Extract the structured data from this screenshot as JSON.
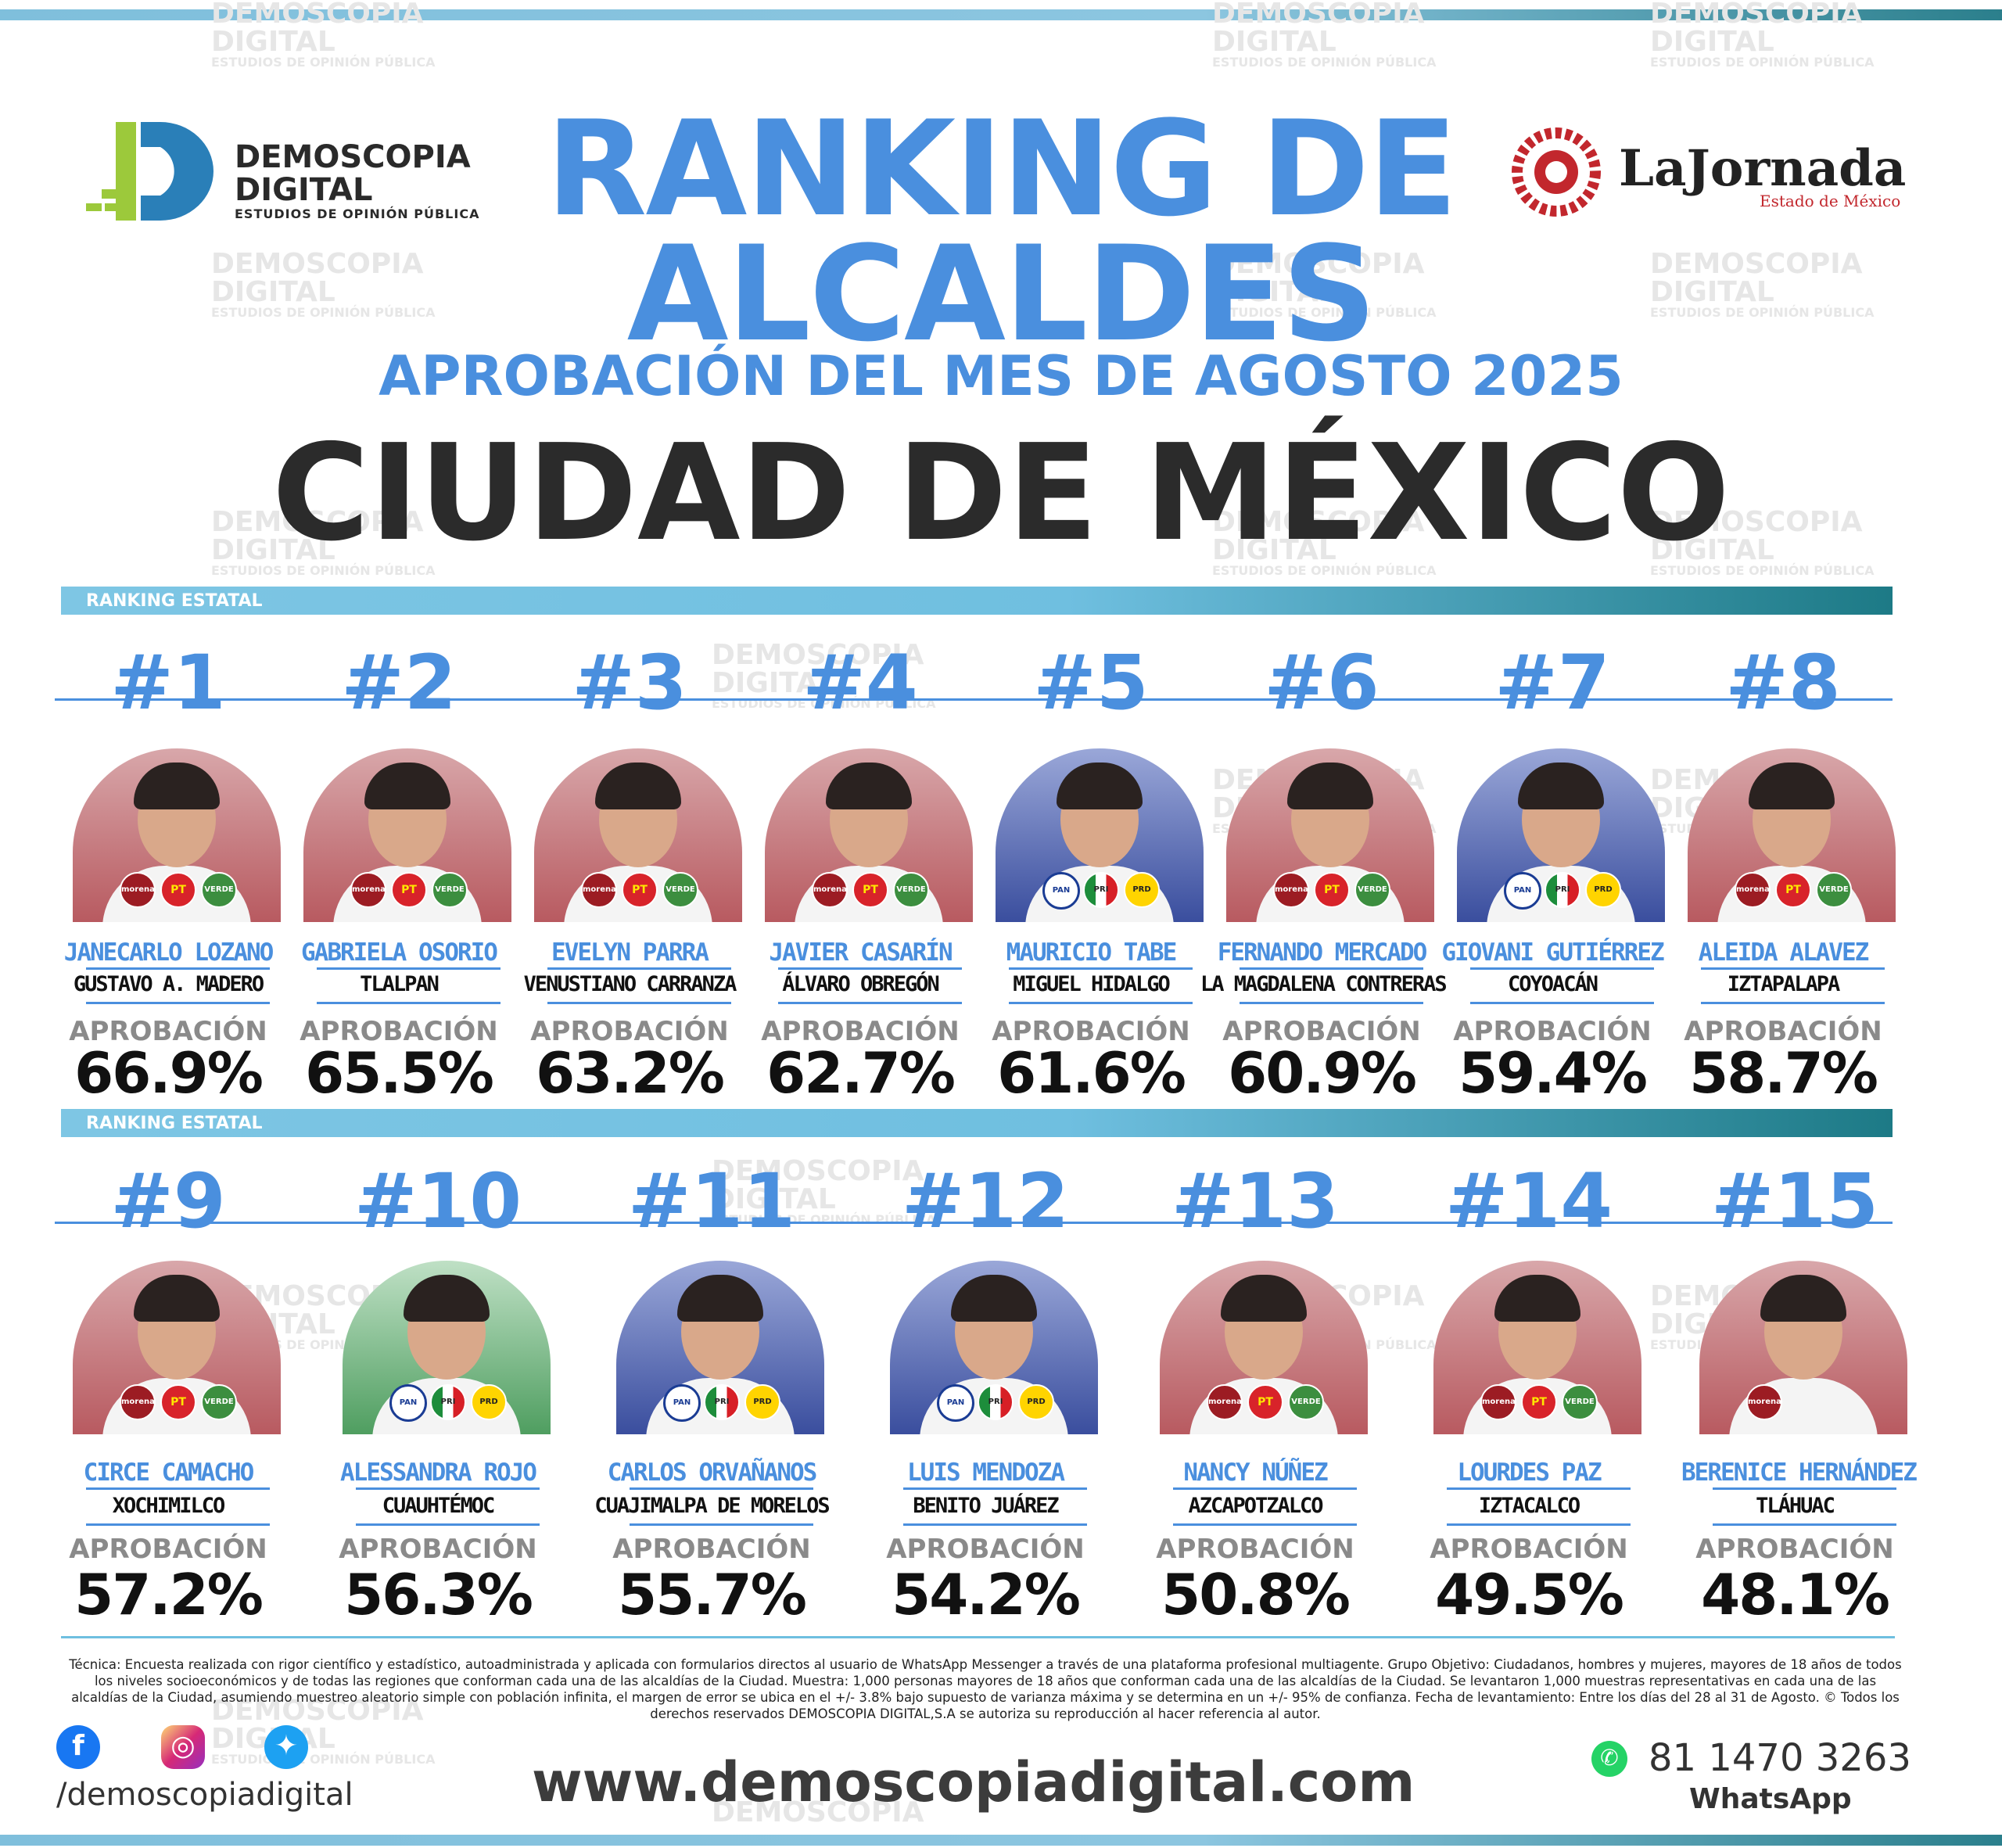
{
  "header": {
    "brand_name_line1": "DEMOSCOPIA",
    "brand_name_line2": "DIGITAL",
    "brand_tagline": "ESTUDIOS DE OPINIÓN PÚBLICA",
    "partner_name": "LaJornada",
    "partner_sub": "Estado de México",
    "title_line1": "RANKING DE",
    "title_line2": "ALCALDES",
    "subtitle": "APROBACIÓN DEL MES DE AGOSTO 2025",
    "region": "CIUDAD DE MÉXICO"
  },
  "watermark": {
    "line1": "DEMOSCOPIA",
    "line2": "DIGITAL",
    "line3": "ESTUDIOS DE OPINIÓN PÚBLICA"
  },
  "section_label": "RANKING ESTATAL",
  "approval_label": "APROBACIÓN",
  "colors": {
    "accent_blue": "#4a8fde",
    "teal": "#1d7a86",
    "text_dark": "#2b2b2b"
  },
  "candidates": [
    {
      "rank": "#1",
      "name": "JANECARLO LOZANO",
      "municipality": "GUSTAVO A. MADERO",
      "approval": "66.9%",
      "parties": [
        "morena",
        "PT",
        "VERDE"
      ]
    },
    {
      "rank": "#2",
      "name": "GABRIELA OSORIO",
      "municipality": "TLALPAN",
      "approval": "65.5%",
      "parties": [
        "morena",
        "PT",
        "VERDE"
      ]
    },
    {
      "rank": "#3",
      "name": "EVELYN PARRA",
      "municipality": "VENUSTIANO CARRANZA",
      "approval": "63.2%",
      "parties": [
        "morena",
        "PT",
        "VERDE"
      ]
    },
    {
      "rank": "#4",
      "name": "JAVIER CASARÍN",
      "municipality": "ÁLVARO OBREGÓN",
      "approval": "62.7%",
      "parties": [
        "morena",
        "PT",
        "VERDE"
      ]
    },
    {
      "rank": "#5",
      "name": "MAURICIO TABE",
      "municipality": "MIGUEL HIDALGO",
      "approval": "61.6%",
      "parties": [
        "PAN",
        "PRI",
        "PRD"
      ]
    },
    {
      "rank": "#6",
      "name": "FERNANDO MERCADO",
      "municipality": "LA MAGDALENA CONTRERAS",
      "approval": "60.9%",
      "parties": [
        "morena",
        "PT",
        "VERDE"
      ]
    },
    {
      "rank": "#7",
      "name": "GIOVANI GUTIÉRREZ",
      "municipality": "COYOACÁN",
      "approval": "59.4%",
      "parties": [
        "PAN",
        "PRI",
        "PRD"
      ]
    },
    {
      "rank": "#8",
      "name": "ALEIDA ALAVEZ",
      "municipality": "IZTAPALAPA",
      "approval": "58.7%",
      "parties": [
        "morena",
        "PT",
        "VERDE"
      ]
    },
    {
      "rank": "#9",
      "name": "CIRCE CAMACHO",
      "municipality": "XOCHIMILCO",
      "approval": "57.2%",
      "parties": [
        "morena",
        "PT",
        "VERDE"
      ]
    },
    {
      "rank": "#10",
      "name": "ALESSANDRA ROJO",
      "municipality": "CUAUHTÉMOC",
      "approval": "56.3%",
      "parties": [
        "PAN",
        "PRI",
        "PRD"
      ]
    },
    {
      "rank": "#11",
      "name": "CARLOS ORVAÑANOS",
      "municipality": "CUAJIMALPA DE MORELOS",
      "approval": "55.7%",
      "parties": [
        "PAN",
        "PRI",
        "PRD"
      ]
    },
    {
      "rank": "#12",
      "name": "LUIS MENDOZA",
      "municipality": "BENITO JUÁREZ",
      "approval": "54.2%",
      "parties": [
        "PAN",
        "PRI",
        "PRD"
      ]
    },
    {
      "rank": "#13",
      "name": "NANCY NÚÑEZ",
      "municipality": "AZCAPOTZALCO",
      "approval": "50.8%",
      "parties": [
        "morena",
        "PT",
        "VERDE"
      ]
    },
    {
      "rank": "#14",
      "name": "LOURDES PAZ",
      "municipality": "IZTACALCO",
      "approval": "49.5%",
      "parties": [
        "morena",
        "PT",
        "VERDE"
      ]
    },
    {
      "rank": "#15",
      "name": "BERENICE HERNÁNDEZ",
      "municipality": "TLÁHUAC",
      "approval": "48.1%",
      "parties": [
        "morena"
      ]
    }
  ],
  "footer": {
    "methodology": "Técnica: Encuesta realizada con rigor científico y estadístico, autoadministrada y aplicada con formularios directos al usuario de WhatsApp Messenger a través de una plataforma profesional multiagente. Grupo Objetivo: Ciudadanos, hombres y mujeres, mayores de 18 años de todos los niveles socioeconómicos y de todas las regiones que conforman cada una de las alcaldías de la Ciudad. Muestra: 1,000 personas mayores de 18 años que conforman cada una de las alcaldías de la Ciudad. Se levantaron 1,000 muestras representativas en cada una de las alcaldías de la Ciudad, asumiendo muestreo aleatorio simple con población infinita, el margen de error se ubica en el +/- 3.8% bajo supuesto de varianza máxima y se determina en un +/- 95% de confianza. Fecha de levantamiento: Entre los días del 28 al 31 de Agosto. © Todos los derechos reservados DEMOSCOPIA DIGITAL,S.A se autoriza su reproducción al hacer referencia al autor.",
    "social_handle": "/demoscopiadigital",
    "website": "www.demoscopiadigital.com",
    "phone": "81 1470 3263",
    "phone_label": "WhatsApp"
  }
}
